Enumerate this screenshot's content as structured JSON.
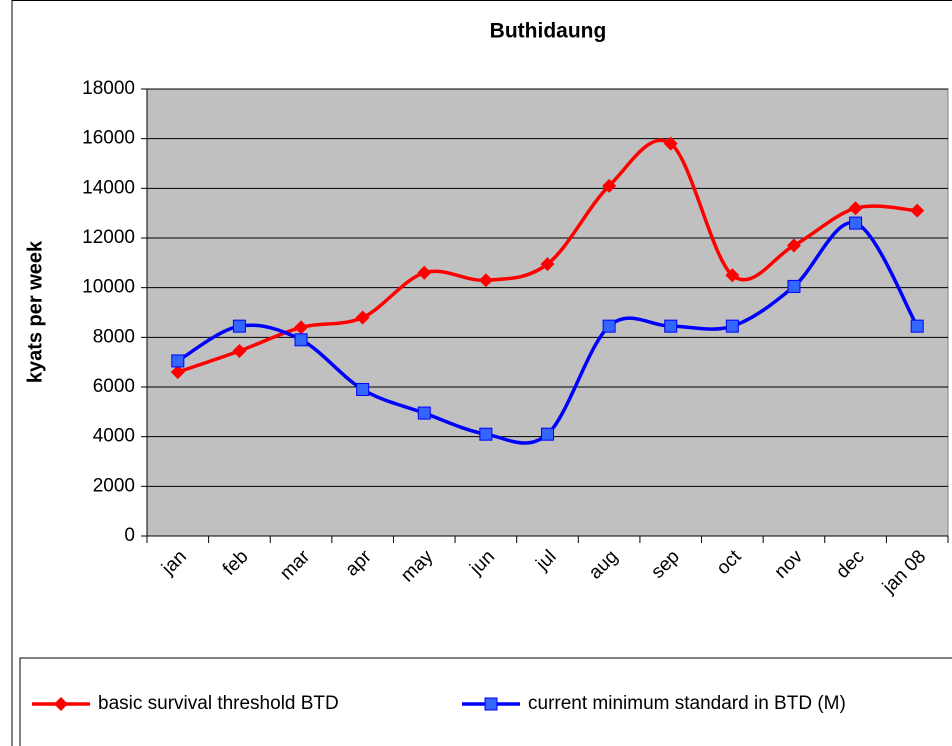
{
  "chart_data": {
    "type": "line",
    "title": "Buthidaung",
    "y_label": "kyats per week",
    "categories": [
      "jan",
      "feb",
      "mar",
      "apr",
      "may",
      "jun",
      "jul",
      "aug",
      "sep",
      "oct",
      "nov",
      "dec",
      "jan 08"
    ],
    "series": [
      {
        "name": "basic survival threshold BTD",
        "color": "#ff0000",
        "marker": "diamond",
        "values": [
          6600,
          7450,
          8400,
          8800,
          10600,
          10300,
          10950,
          14100,
          15800,
          10500,
          11700,
          13200,
          13100
        ]
      },
      {
        "name": "current minimum standard in BTD (M)",
        "color": "#0000ff",
        "marker": "square",
        "values": [
          7050,
          8450,
          7900,
          5900,
          4950,
          4100,
          4100,
          8450,
          8450,
          8450,
          10050,
          12600,
          8450
        ]
      }
    ],
    "ylim": [
      0,
      18000
    ],
    "yticks": [
      0,
      2000,
      4000,
      6000,
      8000,
      10000,
      12000,
      14000,
      16000,
      18000
    ],
    "grid": true,
    "smooth": true,
    "legend": "bottom"
  }
}
